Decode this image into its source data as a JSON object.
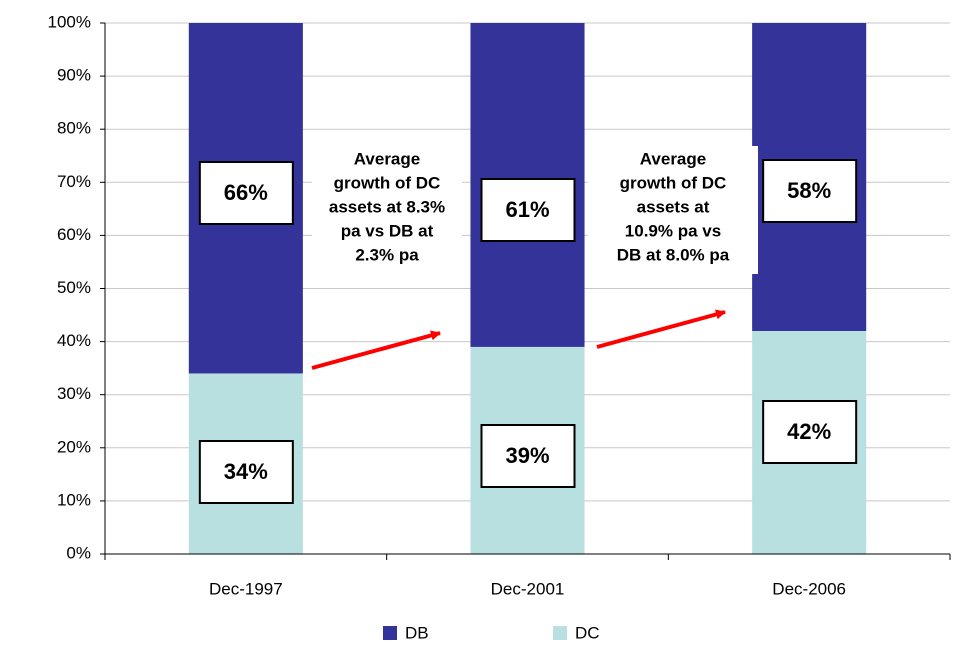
{
  "chart_data": {
    "type": "stacked_bar",
    "categories": [
      "Dec-1997",
      "Dec-2001",
      "Dec-2006"
    ],
    "series": [
      {
        "name": "DB",
        "color": "#333399",
        "values": [
          66,
          61,
          58
        ],
        "value_labels": [
          "66%",
          "61%",
          "58%"
        ]
      },
      {
        "name": "DC",
        "color": "#b9e0e1",
        "values": [
          34,
          39,
          42
        ],
        "value_labels": [
          "34%",
          "39%",
          "42%"
        ]
      }
    ],
    "ylim": [
      0,
      100
    ],
    "yticks": [
      {
        "value": 0,
        "label": "0%"
      },
      {
        "value": 10,
        "label": "10%"
      },
      {
        "value": 20,
        "label": "20%"
      },
      {
        "value": 30,
        "label": "30%"
      },
      {
        "value": 40,
        "label": "40%"
      },
      {
        "value": 50,
        "label": "50%"
      },
      {
        "value": 60,
        "label": "60%"
      },
      {
        "value": 70,
        "label": "70%"
      },
      {
        "value": 80,
        "label": "80%"
      },
      {
        "value": 90,
        "label": "90%"
      },
      {
        "value": 100,
        "label": "100%"
      }
    ],
    "grid": true,
    "legend": "bottom",
    "annotations": [
      {
        "lines": [
          "Average",
          "growth of DC",
          "assets at 8.3%",
          "pa vs DB at",
          "2.3% pa"
        ]
      },
      {
        "lines": [
          "Average",
          "growth of DC",
          "assets at",
          "10.9% pa vs",
          "DB at 8.0% pa"
        ]
      }
    ]
  }
}
